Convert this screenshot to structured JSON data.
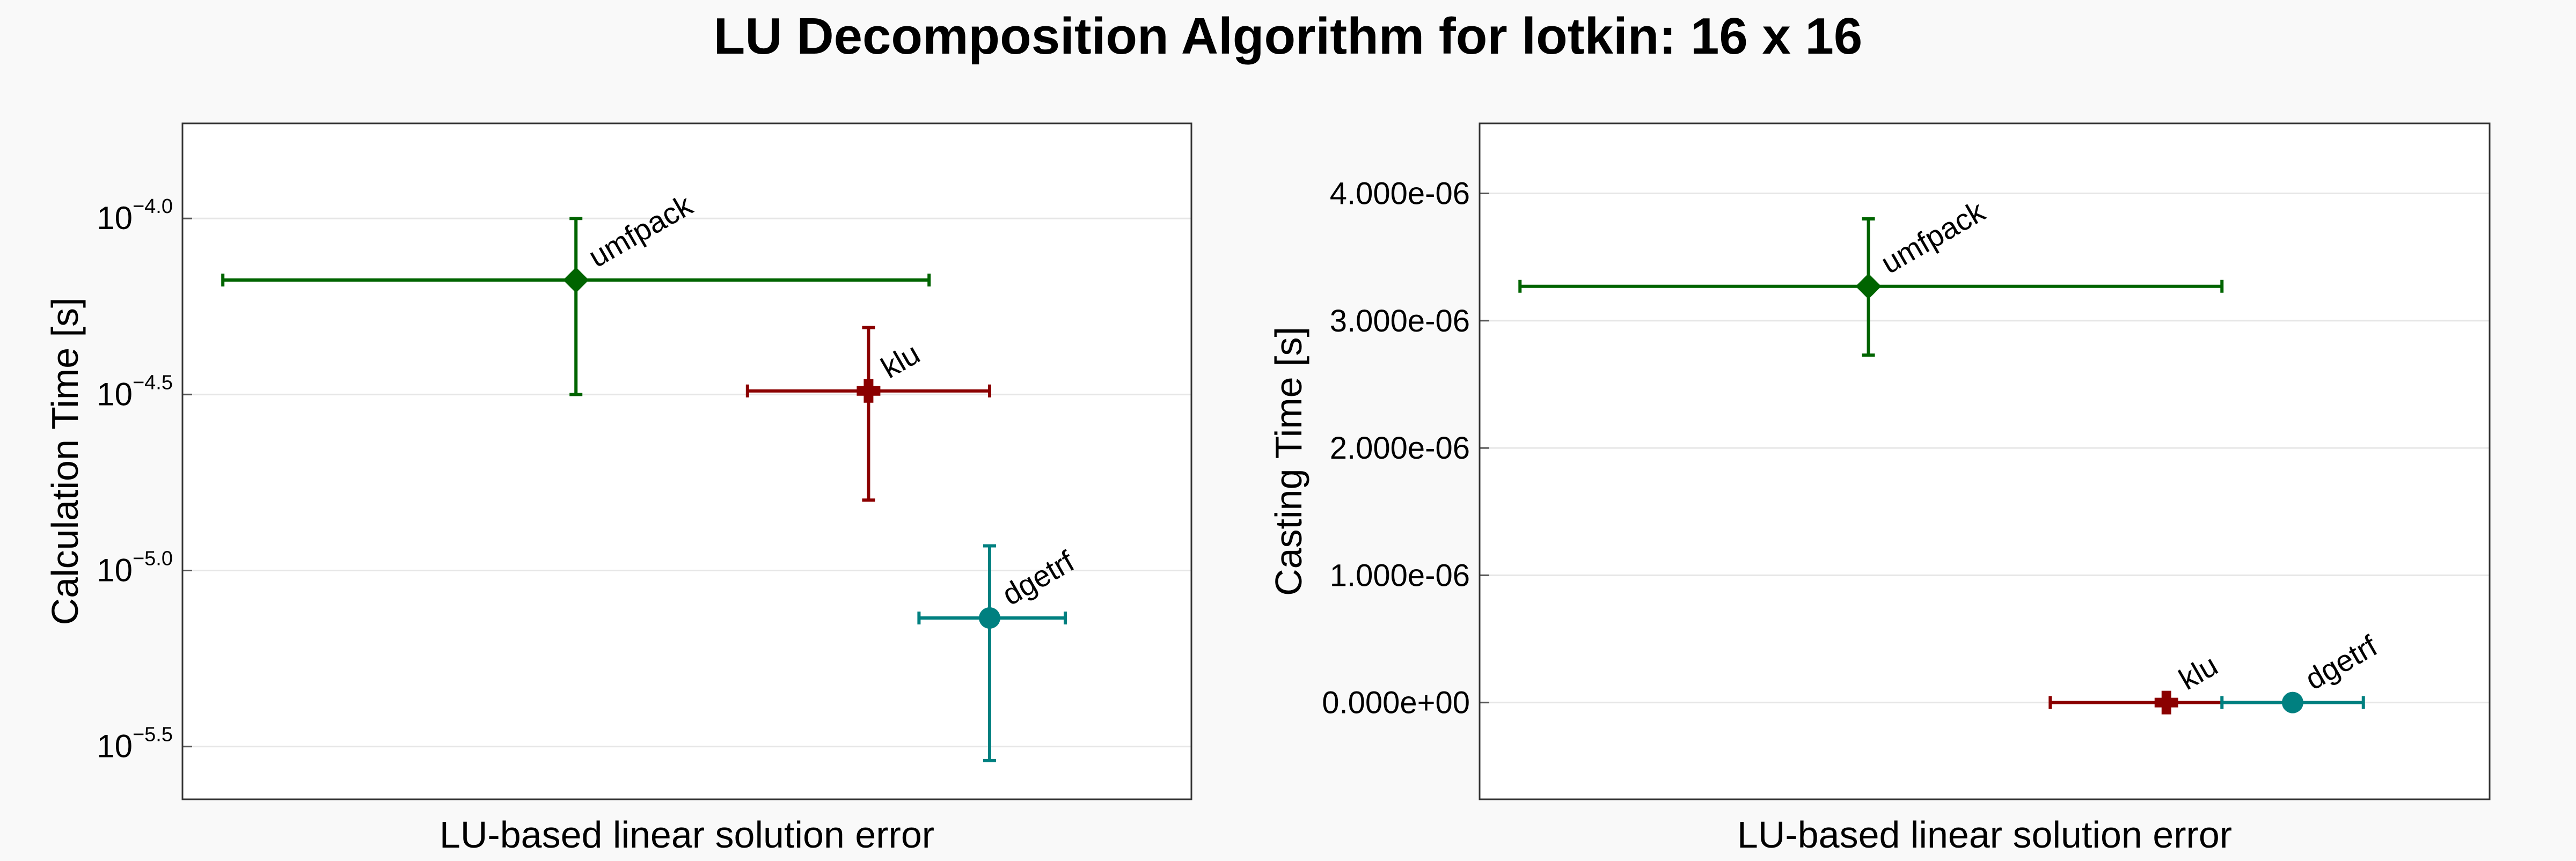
{
  "figure_title": "LU Decomposition Algorithm for lotkin: 16 x 16",
  "chart_data": [
    {
      "type": "scatter",
      "title": "",
      "xlabel": "LU-based linear solution error",
      "ylabel": "Calculation Time [s]",
      "yscale": "log",
      "x_ticks_shown": false,
      "ylim_log10": [
        -5.65,
        -3.73
      ],
      "yticks": [
        {
          "value_log10": -4.0,
          "base": "10",
          "exp": "−4.0"
        },
        {
          "value_log10": -4.5,
          "base": "10",
          "exp": "−4.5"
        },
        {
          "value_log10": -5.0,
          "base": "10",
          "exp": "−5.0"
        },
        {
          "value_log10": -5.5,
          "base": "10",
          "exp": "−5.5"
        }
      ],
      "xlim": [
        0,
        1
      ],
      "grid": "horizontal",
      "series": [
        {
          "name": "umfpack",
          "color": "#006400",
          "marker": "diamond",
          "x": 0.39,
          "x_err": [
            0.04,
            0.74
          ],
          "y_log10": -4.175,
          "y_err_log10": [
            -4.5,
            -4.0
          ]
        },
        {
          "name": "klu",
          "color": "#8b0000",
          "marker": "plus",
          "x": 0.68,
          "x_err": [
            0.56,
            0.8
          ],
          "y_log10": -4.49,
          "y_err_log10": [
            -4.8,
            -4.31
          ]
        },
        {
          "name": "dgetrf",
          "color": "#008080",
          "marker": "circle",
          "x": 0.8,
          "x_err": [
            0.73,
            0.875
          ],
          "y_log10": -5.135,
          "y_err_log10": [
            -5.54,
            -4.93
          ]
        }
      ]
    },
    {
      "type": "scatter",
      "title": "",
      "xlabel": "LU-based linear solution error",
      "ylabel": "Casting Time [s]",
      "yscale": "linear",
      "x_ticks_shown": false,
      "ylim": [
        -7.6e-07,
        4.55e-06
      ],
      "yticks": [
        {
          "value": 0,
          "label": "0.000e+00"
        },
        {
          "value": 1e-06,
          "label": "1.000e-06"
        },
        {
          "value": 2e-06,
          "label": "2.000e-06"
        },
        {
          "value": 3e-06,
          "label": "3.000e-06"
        },
        {
          "value": 4e-06,
          "label": "4.000e-06"
        }
      ],
      "xlim": [
        0,
        1
      ],
      "grid": "horizontal",
      "series": [
        {
          "name": "umfpack",
          "color": "#006400",
          "marker": "diamond",
          "x": 0.385,
          "x_err": [
            0.04,
            0.735
          ],
          "y": 3.27e-06,
          "y_err": [
            2.73e-06,
            3.8e-06
          ]
        },
        {
          "name": "klu",
          "color": "#8b0000",
          "marker": "plus",
          "x": 0.68,
          "x_err": [
            0.565,
            0.8
          ],
          "y": 0,
          "y_err": [
            0,
            0
          ]
        },
        {
          "name": "dgetrf",
          "color": "#008080",
          "marker": "circle",
          "x": 0.805,
          "x_err": [
            0.735,
            0.875
          ],
          "y": 0,
          "y_err": [
            0,
            0
          ]
        }
      ]
    }
  ]
}
